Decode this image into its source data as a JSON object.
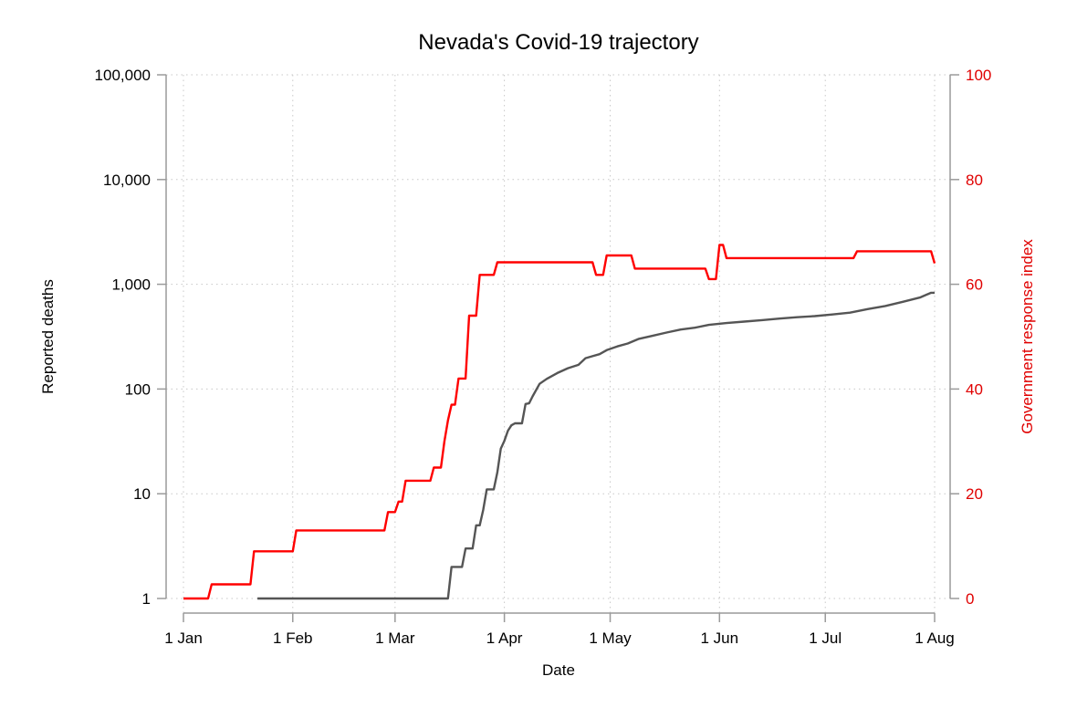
{
  "chart_data": {
    "type": "line",
    "title": "Nevada's Covid-19 trajectory",
    "xlabel": "Date",
    "ylabel": "Reported deaths",
    "ylabel_right": "Government response index",
    "x_axis": {
      "range": [
        "2020-01-01",
        "2020-08-01"
      ],
      "ticks": [
        {
          "date": "2020-01-01",
          "label": "1 Jan"
        },
        {
          "date": "2020-02-01",
          "label": "1 Feb"
        },
        {
          "date": "2020-03-01",
          "label": "1 Mar"
        },
        {
          "date": "2020-04-01",
          "label": "1 Apr"
        },
        {
          "date": "2020-05-01",
          "label": "1 May"
        },
        {
          "date": "2020-06-01",
          "label": "1 Jun"
        },
        {
          "date": "2020-07-01",
          "label": "1 Jul"
        },
        {
          "date": "2020-08-01",
          "label": "1 Aug"
        }
      ]
    },
    "y_left": {
      "scale": "log",
      "range": [
        1,
        100000
      ],
      "ticks": [
        {
          "value": 1,
          "label": "1"
        },
        {
          "value": 10,
          "label": "10"
        },
        {
          "value": 100,
          "label": "100"
        },
        {
          "value": 1000,
          "label": "1,000"
        },
        {
          "value": 10000,
          "label": "10,000"
        },
        {
          "value": 100000,
          "label": "100,000"
        }
      ]
    },
    "y_right": {
      "scale": "linear",
      "range": [
        0,
        100
      ],
      "ticks": [
        {
          "value": 0,
          "label": "0"
        },
        {
          "value": 20,
          "label": "20"
        },
        {
          "value": 40,
          "label": "40"
        },
        {
          "value": 60,
          "label": "60"
        },
        {
          "value": 80,
          "label": "80"
        },
        {
          "value": 100,
          "label": "100"
        }
      ]
    },
    "grid": true,
    "series": [
      {
        "axis": "left",
        "color": "#555555",
        "points": [
          [
            "2020-01-22",
            1
          ],
          [
            "2020-03-16",
            1
          ],
          [
            "2020-03-17",
            2
          ],
          [
            "2020-03-20",
            2
          ],
          [
            "2020-03-21",
            3
          ],
          [
            "2020-03-23",
            3
          ],
          [
            "2020-03-24",
            5
          ],
          [
            "2020-03-25",
            5
          ],
          [
            "2020-03-26",
            7
          ],
          [
            "2020-03-27",
            11
          ],
          [
            "2020-03-29",
            11
          ],
          [
            "2020-03-30",
            16
          ],
          [
            "2020-03-31",
            27
          ],
          [
            "2020-04-01",
            32
          ],
          [
            "2020-04-02",
            40
          ],
          [
            "2020-04-03",
            45
          ],
          [
            "2020-04-04",
            47
          ],
          [
            "2020-04-06",
            47
          ],
          [
            "2020-04-07",
            72
          ],
          [
            "2020-04-08",
            73
          ],
          [
            "2020-04-09",
            85
          ],
          [
            "2020-04-11",
            112
          ],
          [
            "2020-04-13",
            125
          ],
          [
            "2020-04-16",
            142
          ],
          [
            "2020-04-19",
            158
          ],
          [
            "2020-04-22",
            170
          ],
          [
            "2020-04-24",
            197
          ],
          [
            "2020-04-26",
            206
          ],
          [
            "2020-04-28",
            215
          ],
          [
            "2020-04-30",
            235
          ],
          [
            "2020-05-03",
            255
          ],
          [
            "2020-05-06",
            272
          ],
          [
            "2020-05-09",
            300
          ],
          [
            "2020-05-13",
            322
          ],
          [
            "2020-05-17",
            346
          ],
          [
            "2020-05-21",
            370
          ],
          [
            "2020-05-25",
            385
          ],
          [
            "2020-05-29",
            410
          ],
          [
            "2020-06-03",
            426
          ],
          [
            "2020-06-08",
            440
          ],
          [
            "2020-06-13",
            455
          ],
          [
            "2020-06-18",
            470
          ],
          [
            "2020-06-23",
            485
          ],
          [
            "2020-06-28",
            497
          ],
          [
            "2020-07-03",
            515
          ],
          [
            "2020-07-08",
            536
          ],
          [
            "2020-07-13",
            580
          ],
          [
            "2020-07-18",
            620
          ],
          [
            "2020-07-23",
            680
          ],
          [
            "2020-07-28",
            750
          ],
          [
            "2020-07-31",
            830
          ],
          [
            "2020-08-01",
            830
          ]
        ]
      },
      {
        "axis": "right",
        "color": "#ff0000",
        "points": [
          [
            "2020-01-01",
            0
          ],
          [
            "2020-01-08",
            0
          ],
          [
            "2020-01-09",
            2.7
          ],
          [
            "2020-01-20",
            2.7
          ],
          [
            "2020-01-21",
            9
          ],
          [
            "2020-02-01",
            9
          ],
          [
            "2020-02-02",
            13
          ],
          [
            "2020-02-27",
            13
          ],
          [
            "2020-02-28",
            16.5
          ],
          [
            "2020-03-01",
            16.5
          ],
          [
            "2020-03-02",
            18.5
          ],
          [
            "2020-03-03",
            18.5
          ],
          [
            "2020-03-04",
            22.5
          ],
          [
            "2020-03-11",
            22.5
          ],
          [
            "2020-03-12",
            25
          ],
          [
            "2020-03-14",
            25
          ],
          [
            "2020-03-15",
            30
          ],
          [
            "2020-03-16",
            34
          ],
          [
            "2020-03-17",
            37
          ],
          [
            "2020-03-18",
            37
          ],
          [
            "2020-03-19",
            42
          ],
          [
            "2020-03-21",
            42
          ],
          [
            "2020-03-22",
            54
          ],
          [
            "2020-03-24",
            54
          ],
          [
            "2020-03-25",
            61.8
          ],
          [
            "2020-03-29",
            61.8
          ],
          [
            "2020-03-30",
            64.2
          ],
          [
            "2020-04-26",
            64.2
          ],
          [
            "2020-04-27",
            61.8
          ],
          [
            "2020-04-29",
            61.8
          ],
          [
            "2020-04-30",
            65.5
          ],
          [
            "2020-05-07",
            65.5
          ],
          [
            "2020-05-08",
            63
          ],
          [
            "2020-05-28",
            63
          ],
          [
            "2020-05-29",
            61
          ],
          [
            "2020-05-31",
            61
          ],
          [
            "2020-06-01",
            67.5
          ],
          [
            "2020-06-02",
            67.5
          ],
          [
            "2020-06-03",
            65
          ],
          [
            "2020-07-09",
            65
          ],
          [
            "2020-07-10",
            66.3
          ],
          [
            "2020-07-31",
            66.3
          ],
          [
            "2020-08-01",
            64
          ]
        ]
      }
    ]
  }
}
